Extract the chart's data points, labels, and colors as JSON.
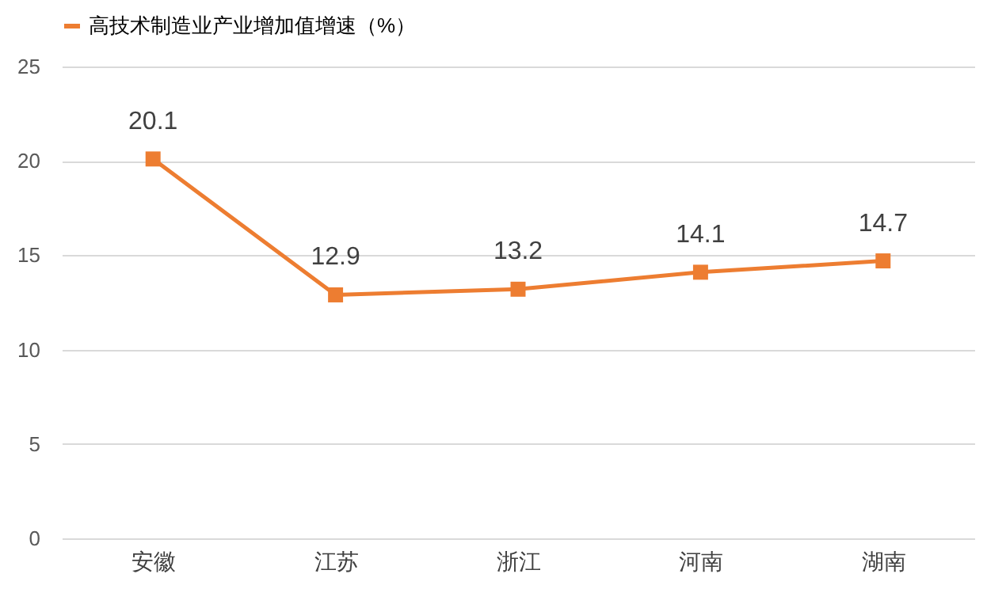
{
  "chart_data": {
    "type": "line",
    "categories": [
      "安徽",
      "江苏",
      "浙江",
      "河南",
      "湖南"
    ],
    "series": [
      {
        "name": "高技术制造业产业增加值增速（%）",
        "color": "#ed7d31",
        "values": [
          20.1,
          12.9,
          13.2,
          14.1,
          14.7
        ]
      }
    ],
    "ylim": [
      0,
      25
    ],
    "yticks": [
      0,
      5,
      10,
      15,
      20,
      25
    ],
    "grid": "y",
    "legend": "top",
    "marker": "square",
    "line_style": "solid",
    "data_labels": true
  }
}
